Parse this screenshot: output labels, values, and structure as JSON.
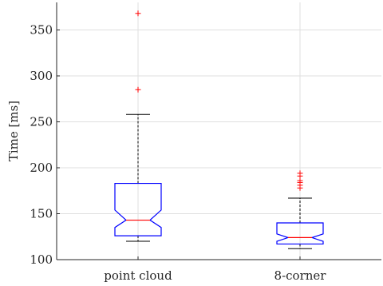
{
  "chart_data": {
    "type": "boxplot",
    "title": "",
    "xlabel": "",
    "ylabel": "Time [ms]",
    "ylim": [
      100,
      380
    ],
    "yticks": [
      100,
      150,
      200,
      250,
      300,
      350
    ],
    "grid": true,
    "notched": true,
    "categories": [
      "point cloud",
      "8-corner"
    ],
    "boxes": [
      {
        "category": "point cloud",
        "whisker_low": 120,
        "q1": 126,
        "median": 143,
        "q3": 183,
        "whisker_high": 258,
        "notch_low": 135,
        "notch_high": 154,
        "outliers": [
          285,
          368
        ]
      },
      {
        "category": "8-corner",
        "whisker_low": 112,
        "q1": 117,
        "median": 124,
        "q3": 140,
        "whisker_high": 167,
        "notch_low": 120,
        "notch_high": 128,
        "outliers": [
          178,
          181,
          184,
          186,
          191,
          194
        ]
      }
    ],
    "colors": {
      "box": "#0000ff",
      "median": "#ff0000",
      "whisker": "#000000",
      "outlier": "#ff0000",
      "grid": "#dfdfdf",
      "axis": "#262626"
    }
  }
}
